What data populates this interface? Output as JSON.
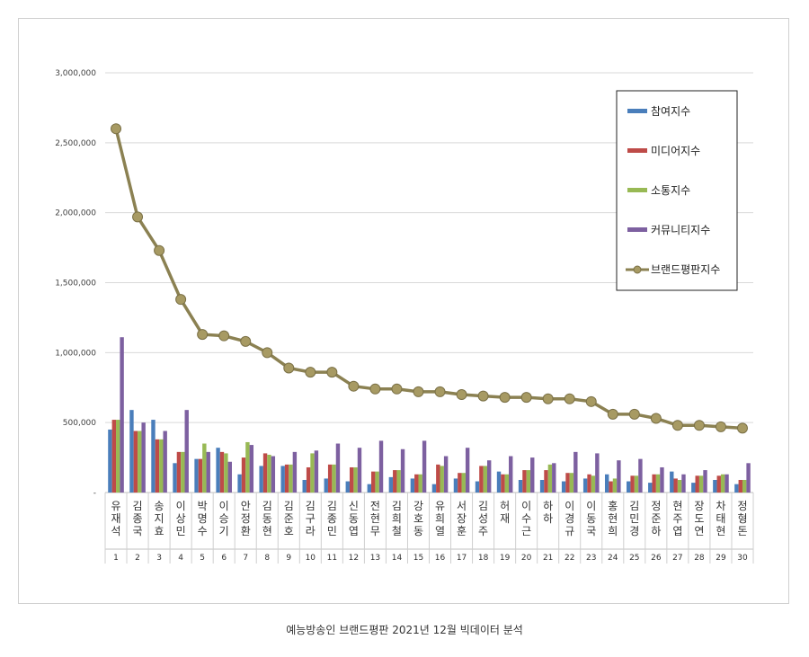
{
  "caption": "예능방송인 브랜드평판  2021년 12월 빅데이터 분석",
  "colors": {
    "participation": "#4a7ebb",
    "media": "#be4b48",
    "communication": "#98b954",
    "community": "#7d60a0",
    "brand": "#8b8152",
    "grid": "#d9d9d9",
    "axis_text": "#404040"
  },
  "chart_data": {
    "type": "bar",
    "ylim": [
      0,
      3000000
    ],
    "yticks": [
      {
        "value": 0,
        "label": "-"
      },
      {
        "value": 500000,
        "label": "500,000"
      },
      {
        "value": 1000000,
        "label": "1,000,000"
      },
      {
        "value": 1500000,
        "label": "1,500,000"
      },
      {
        "value": 2000000,
        "label": "2,000,000"
      },
      {
        "value": 2500000,
        "label": "2,500,000"
      },
      {
        "value": 3000000,
        "label": "3,000,000"
      }
    ],
    "categories": [
      "유재석",
      "김종국",
      "송지효",
      "이상민",
      "박명수",
      "이승기",
      "안정환",
      "김동현",
      "김준호",
      "김구라",
      "김종민",
      "신동엽",
      "전현무",
      "김희철",
      "강호동",
      "유희열",
      "서장훈",
      "김성주",
      "허재",
      "이수근",
      "하하",
      "이경규",
      "이동국",
      "홍현희",
      "김민경",
      "정준하",
      "현주엽",
      "장도연",
      "차태현",
      "정형돈"
    ],
    "ranks": [
      "1",
      "2",
      "3",
      "4",
      "5",
      "6",
      "7",
      "8",
      "9",
      "10",
      "11",
      "12",
      "13",
      "14",
      "15",
      "16",
      "17",
      "18",
      "19",
      "20",
      "21",
      "22",
      "23",
      "24",
      "25",
      "26",
      "27",
      "28",
      "29",
      "30"
    ],
    "legend_position": "top-right",
    "grid": true,
    "series": [
      {
        "name": "참여지수",
        "kind": "bar",
        "color_key": "participation",
        "values": [
          450000,
          590000,
          520000,
          210000,
          240000,
          320000,
          130000,
          190000,
          190000,
          90000,
          100000,
          80000,
          60000,
          110000,
          100000,
          60000,
          100000,
          80000,
          150000,
          90000,
          90000,
          80000,
          100000,
          130000,
          80000,
          70000,
          150000,
          70000,
          90000,
          60000
        ]
      },
      {
        "name": "미디어지수",
        "kind": "bar",
        "color_key": "media",
        "values": [
          520000,
          440000,
          380000,
          290000,
          240000,
          290000,
          250000,
          280000,
          200000,
          180000,
          200000,
          180000,
          150000,
          160000,
          130000,
          200000,
          140000,
          190000,
          130000,
          160000,
          160000,
          140000,
          130000,
          80000,
          120000,
          130000,
          100000,
          120000,
          120000,
          90000
        ]
      },
      {
        "name": "소통지수",
        "kind": "bar",
        "color_key": "communication",
        "values": [
          520000,
          440000,
          380000,
          290000,
          350000,
          280000,
          360000,
          270000,
          200000,
          280000,
          200000,
          180000,
          150000,
          160000,
          130000,
          190000,
          140000,
          190000,
          130000,
          160000,
          200000,
          140000,
          120000,
          100000,
          120000,
          130000,
          90000,
          120000,
          130000,
          90000
        ]
      },
      {
        "name": "커뮤니티지수",
        "kind": "bar",
        "color_key": "community",
        "values": [
          1110000,
          500000,
          440000,
          590000,
          290000,
          220000,
          340000,
          260000,
          290000,
          300000,
          350000,
          320000,
          370000,
          310000,
          370000,
          260000,
          320000,
          230000,
          260000,
          250000,
          210000,
          290000,
          280000,
          230000,
          240000,
          180000,
          130000,
          160000,
          130000,
          210000
        ]
      },
      {
        "name": "브랜드평판지수",
        "kind": "line",
        "color_key": "brand",
        "values": [
          2600000,
          1970000,
          1730000,
          1380000,
          1130000,
          1120000,
          1080000,
          1000000,
          890000,
          860000,
          860000,
          760000,
          740000,
          740000,
          720000,
          720000,
          700000,
          690000,
          680000,
          680000,
          670000,
          670000,
          650000,
          560000,
          560000,
          530000,
          480000,
          480000,
          470000,
          460000
        ]
      }
    ]
  }
}
